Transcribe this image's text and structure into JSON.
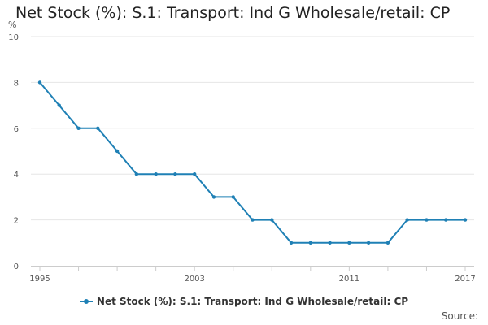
{
  "colors": {
    "series": "#1f80b5",
    "grid": "#e6e6e6",
    "axis": "#cccccc",
    "tick_text": "#555555"
  },
  "source_label": "Source:",
  "chart_data": {
    "type": "line",
    "title": "Net Stock (%): S.1: Transport: Ind G Wholesale/retail: CP",
    "ylabel": "%",
    "xlabel": "",
    "ylim": [
      0,
      10
    ],
    "xlim": [
      1995,
      2017
    ],
    "y_ticks": [
      0,
      2,
      4,
      6,
      8,
      10
    ],
    "x_tick_labels": [
      "1995",
      "2003",
      "2011",
      "2017"
    ],
    "x_minor_ticks": [
      1995,
      1997,
      1999,
      2001,
      2003,
      2005,
      2007,
      2009,
      2011,
      2013,
      2015,
      2017
    ],
    "grid": "horizontal",
    "legend_position": "bottom",
    "series": [
      {
        "name": "Net Stock (%): S.1: Transport: Ind G Wholesale/retail: CP",
        "x": [
          1995,
          1996,
          1997,
          1998,
          1999,
          2000,
          2001,
          2002,
          2003,
          2004,
          2005,
          2006,
          2007,
          2008,
          2009,
          2010,
          2011,
          2012,
          2013,
          2014,
          2015,
          2016,
          2017
        ],
        "values": [
          8,
          7,
          6,
          6,
          5,
          4,
          4,
          4,
          4,
          3,
          3,
          2,
          2,
          1,
          1,
          1,
          1,
          1,
          1,
          2,
          2,
          2,
          2
        ]
      }
    ]
  }
}
